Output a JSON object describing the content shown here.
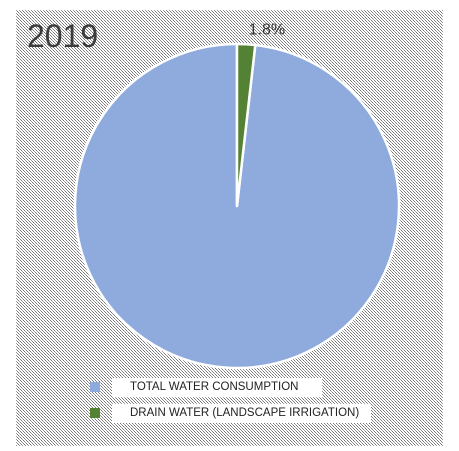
{
  "chart_data": {
    "type": "pie",
    "title": "2019",
    "categories": [
      "TOTAL WATER CONSUMPTION",
      "DRAIN WATER (LANDSCAPE IRRIGATION)"
    ],
    "values": [
      98.2,
      1.8
    ],
    "data_labels": [
      "",
      "1.8%"
    ],
    "colors": [
      "#8faadc",
      "#548235"
    ],
    "slice_border_color": "#ffffff",
    "legend_position": "bottom"
  }
}
